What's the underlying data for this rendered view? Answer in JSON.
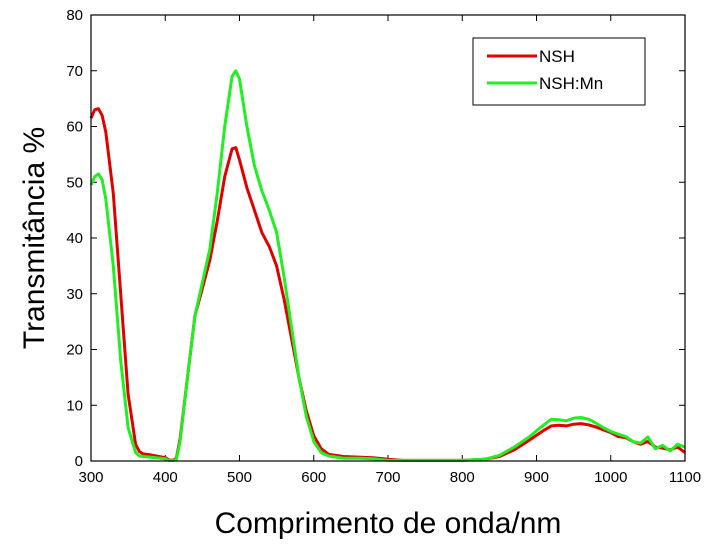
{
  "chart_data": {
    "type": "line",
    "x_label": "Comprimento de onda/nm",
    "y_label": "Transmitância %",
    "x": [
      300,
      305,
      310,
      315,
      320,
      330,
      340,
      350,
      360,
      365,
      370,
      380,
      400,
      405,
      410,
      415,
      420,
      430,
      440,
      450,
      460,
      470,
      480,
      490,
      495,
      500,
      510,
      520,
      530,
      540,
      550,
      560,
      570,
      580,
      590,
      600,
      610,
      620,
      640,
      660,
      680,
      700,
      720,
      750,
      800,
      830,
      850,
      870,
      890,
      910,
      920,
      930,
      940,
      950,
      960,
      970,
      980,
      990,
      1000,
      1010,
      1020,
      1030,
      1040,
      1050,
      1060,
      1070,
      1080,
      1090,
      1100
    ],
    "series": [
      {
        "name": "NSH",
        "color": "#e00000",
        "values": [
          61.5,
          63,
          63.2,
          62,
          59,
          48,
          30,
          12,
          3,
          1.7,
          1.3,
          1.1,
          0.6,
          0.2,
          0.1,
          0.5,
          4,
          15,
          26,
          31,
          36,
          43,
          51,
          56,
          56.2,
          54,
          49,
          45,
          41,
          38.5,
          35,
          29,
          22,
          15,
          9,
          4.5,
          2.2,
          1.2,
          0.8,
          0.7,
          0.6,
          0.3,
          0.1,
          0.1,
          0.1,
          0.3,
          0.8,
          2,
          3.7,
          5.5,
          6.3,
          6.4,
          6.3,
          6.6,
          6.7,
          6.5,
          6.1,
          5.6,
          5.1,
          4.4,
          4.2,
          3.5,
          3,
          3.5,
          2.5,
          2.3,
          2.0,
          2.5,
          1.5
        ]
      },
      {
        "name": "NSH:Mn",
        "color": "#22ee22",
        "values": [
          49.5,
          51,
          51.5,
          50.5,
          47,
          35,
          18,
          6,
          1.5,
          0.9,
          0.8,
          0.7,
          0.4,
          0.1,
          0.1,
          0.3,
          3.5,
          15,
          26,
          32,
          38,
          48,
          60,
          69,
          70,
          68.5,
          60,
          53,
          48.5,
          45,
          41,
          33,
          24,
          15,
          8,
          3.5,
          1.5,
          0.9,
          0.5,
          0.5,
          0.4,
          0.1,
          0.1,
          0.1,
          0.1,
          0.3,
          1,
          2.5,
          4.3,
          6.5,
          7.5,
          7.4,
          7.2,
          7.7,
          7.8,
          7.5,
          6.8,
          6,
          5.3,
          4.8,
          4.4,
          3.5,
          3.2,
          4.3,
          2.2,
          2.8,
          1.8,
          3,
          2.5
        ]
      }
    ],
    "xlim": [
      300,
      1100
    ],
    "xticks": [
      300,
      400,
      500,
      600,
      700,
      800,
      900,
      1000,
      1100
    ],
    "ylim": [
      0,
      80
    ],
    "yticks": [
      0,
      10,
      20,
      30,
      40,
      50,
      60,
      70,
      80
    ],
    "legend": "upper right"
  }
}
